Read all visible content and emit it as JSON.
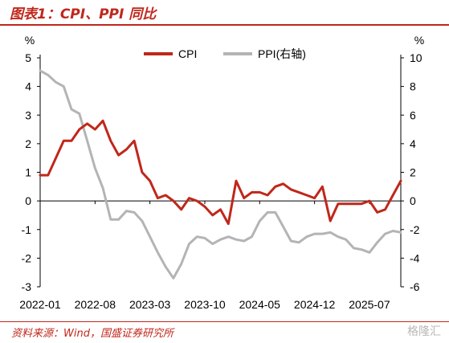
{
  "header": {
    "title": "图表1：CPI、PPI 同比"
  },
  "footer": {
    "source": "资料来源：Wind，国盛证券研究所",
    "watermark": "格隆汇"
  },
  "colors": {
    "cpi": "#c0271b",
    "ppi": "#b4b4b4",
    "accent": "#c0271b"
  },
  "chart_data": {
    "type": "line",
    "title": "CPI、PPI 同比",
    "x_start": "2022-01",
    "x_tick_labels": [
      "2022-01",
      "2022-08",
      "2023-03",
      "2023-10",
      "2024-05",
      "2024-12",
      "2025-07"
    ],
    "left_axis": {
      "unit": "%",
      "ylim": [
        -3,
        5
      ],
      "ticks": [
        "-3",
        "-2",
        "-1",
        "0",
        "1",
        "2",
        "3",
        "4",
        "5"
      ]
    },
    "right_axis": {
      "unit": "%",
      "ylim": [
        -6,
        10
      ],
      "ticks": [
        "-6",
        "-4",
        "-2",
        "0",
        "2",
        "4",
        "6",
        "8",
        "10"
      ]
    },
    "legend": {
      "placement": "top-center"
    },
    "series": [
      {
        "name": "CPI",
        "axis": "left",
        "values": [
          0.9,
          0.9,
          1.5,
          2.1,
          2.1,
          2.5,
          2.7,
          2.5,
          2.8,
          2.1,
          1.6,
          1.8,
          2.1,
          1.0,
          0.7,
          0.1,
          0.2,
          0.0,
          -0.3,
          0.1,
          0.0,
          -0.2,
          -0.5,
          -0.3,
          -0.8,
          0.7,
          0.1,
          0.3,
          0.3,
          0.2,
          0.5,
          0.6,
          0.4,
          0.3,
          0.2,
          0.1,
          0.5,
          -0.7,
          -0.1,
          -0.1,
          -0.1,
          -0.1,
          0.0,
          -0.4,
          -0.3,
          0.2,
          0.7
        ]
      },
      {
        "name": "PPI(右轴)",
        "axis": "right",
        "values": [
          9.1,
          8.8,
          8.3,
          8.0,
          6.4,
          6.1,
          4.2,
          2.3,
          0.9,
          -1.3,
          -1.3,
          -0.7,
          -0.8,
          -1.4,
          -2.5,
          -3.6,
          -4.6,
          -5.4,
          -4.4,
          -3.0,
          -2.5,
          -2.6,
          -3.0,
          -2.7,
          -2.5,
          -2.7,
          -2.8,
          -2.5,
          -1.4,
          -0.8,
          -0.8,
          -1.8,
          -2.8,
          -2.9,
          -2.5,
          -2.3,
          -2.3,
          -2.2,
          -2.5,
          -2.7,
          -3.3,
          -3.4,
          -3.6,
          -2.9,
          -2.3,
          -2.1,
          -2.2
        ]
      }
    ]
  }
}
